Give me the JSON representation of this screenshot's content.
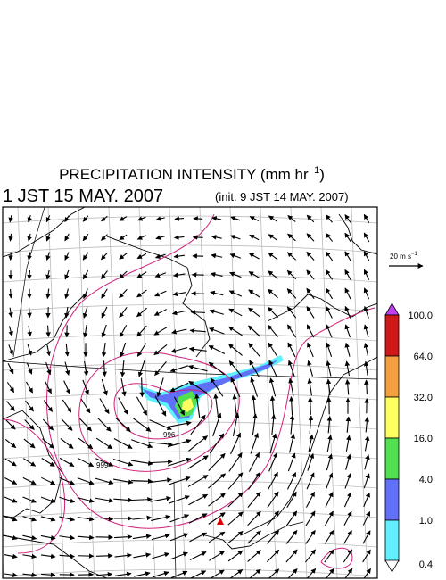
{
  "header": {
    "title": "PRECIPITATION INTENSITY (mm hr",
    "title_exponent": "−1",
    "title_close": ")",
    "valid_time": "1 JST 15 MAY. 2007",
    "init_time": "(init. 9 JST 14 MAY. 2007)"
  },
  "wind_reference": {
    "label": "20 m s",
    "exponent": "−1"
  },
  "contour_labels": [
    "996",
    "999"
  ],
  "color_scale": {
    "levels": [
      {
        "label": "100.0",
        "color": "#d01818"
      },
      {
        "label": "64.0",
        "color": "#f4a040"
      },
      {
        "label": "32.0",
        "color": "#ffff60"
      },
      {
        "label": "16.0",
        "color": "#50e050"
      },
      {
        "label": "4.0",
        "color": "#6070f8"
      },
      {
        "label": "1.0",
        "color": "#60f0ff"
      },
      {
        "label": "0.4",
        "color": "#ffffff"
      }
    ],
    "over_color": "#c040f0"
  }
}
